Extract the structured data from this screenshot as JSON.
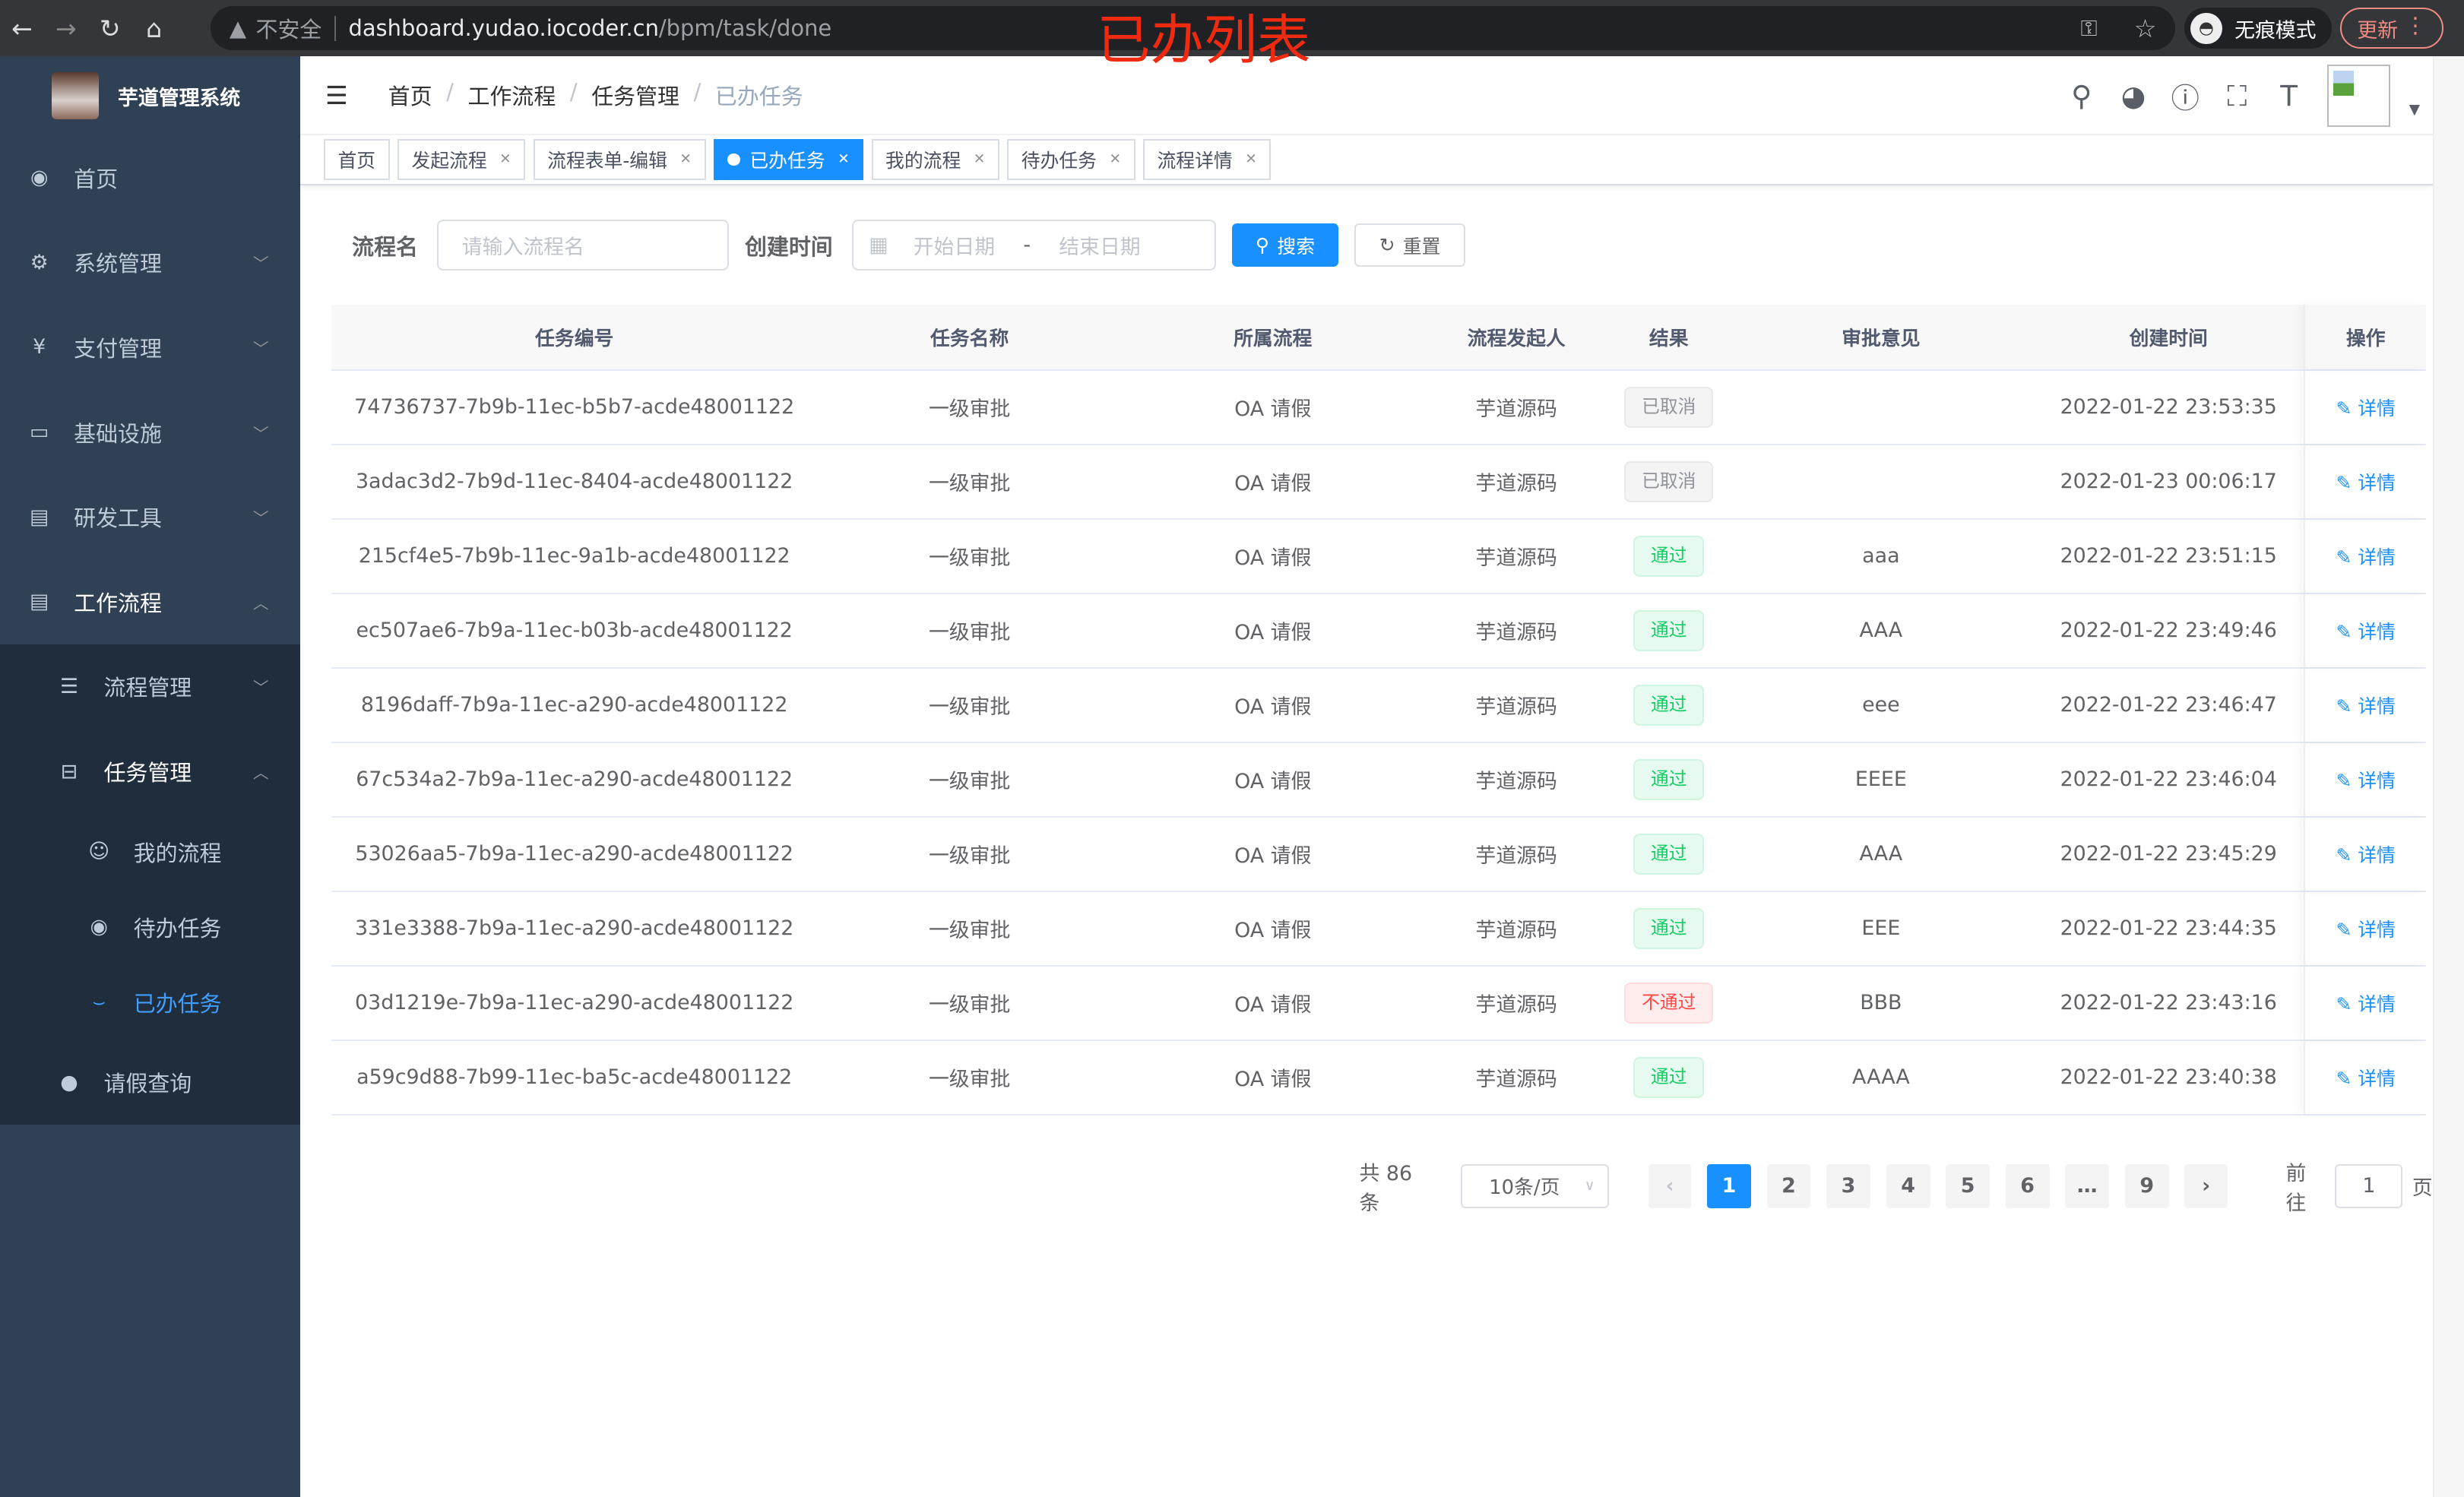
{
  "browser": {
    "security": "不安全",
    "url_host": "dashboard.yudao.iocoder.cn",
    "url_path": "/bpm/task/done",
    "incognito": "无痕模式",
    "update": "更新"
  },
  "annotation": "已办列表",
  "sidebar": {
    "title": "芋道管理系统",
    "items": [
      {
        "label": "首页",
        "icon": "dashboard-icon"
      },
      {
        "label": "系统管理",
        "icon": "gear-icon"
      },
      {
        "label": "支付管理",
        "icon": "yen-icon"
      },
      {
        "label": "基础设施",
        "icon": "monitor-icon"
      },
      {
        "label": "研发工具",
        "icon": "toolbox-icon"
      },
      {
        "label": "工作流程",
        "icon": "toolbox-icon"
      }
    ],
    "sub": {
      "flow_manage": "流程管理",
      "task_manage": "任务管理",
      "my_process": "我的流程",
      "todo": "待办任务",
      "done": "已办任务",
      "leave": "请假查询"
    }
  },
  "breadcrumb": [
    "首页",
    "工作流程",
    "任务管理",
    "已办任务"
  ],
  "tags": [
    "首页",
    "发起流程",
    "流程表单-编辑",
    "已办任务",
    "我的流程",
    "待办任务",
    "流程详情"
  ],
  "search": {
    "name_label": "流程名",
    "name_placeholder": "请输入流程名",
    "time_label": "创建时间",
    "start_placeholder": "开始日期",
    "range_sep": "-",
    "end_placeholder": "结束日期",
    "search_btn": "搜索",
    "reset_btn": "重置"
  },
  "table": {
    "headers": [
      "任务编号",
      "任务名称",
      "所属流程",
      "流程发起人",
      "结果",
      "审批意见",
      "创建时间",
      "操作"
    ],
    "rows": [
      [
        "74736737-7b9b-11ec-b5b7-acde48001122",
        "一级审批",
        "OA 请假",
        "芋道源码",
        "已取消",
        "",
        "2022-01-22 23:53:35",
        "详情"
      ],
      [
        "3adac3d2-7b9d-11ec-8404-acde48001122",
        "一级审批",
        "OA 请假",
        "芋道源码",
        "已取消",
        "",
        "2022-01-23 00:06:17",
        "详情"
      ],
      [
        "215cf4e5-7b9b-11ec-9a1b-acde48001122",
        "一级审批",
        "OA 请假",
        "芋道源码",
        "通过",
        "aaa",
        "2022-01-22 23:51:15",
        "详情"
      ],
      [
        "ec507ae6-7b9a-11ec-b03b-acde48001122",
        "一级审批",
        "OA 请假",
        "芋道源码",
        "通过",
        "AAA",
        "2022-01-22 23:49:46",
        "详情"
      ],
      [
        "8196daff-7b9a-11ec-a290-acde48001122",
        "一级审批",
        "OA 请假",
        "芋道源码",
        "通过",
        "eee",
        "2022-01-22 23:46:47",
        "详情"
      ],
      [
        "67c534a2-7b9a-11ec-a290-acde48001122",
        "一级审批",
        "OA 请假",
        "芋道源码",
        "通过",
        "EEEE",
        "2022-01-22 23:46:04",
        "详情"
      ],
      [
        "53026aa5-7b9a-11ec-a290-acde48001122",
        "一级审批",
        "OA 请假",
        "芋道源码",
        "通过",
        "AAA",
        "2022-01-22 23:45:29",
        "详情"
      ],
      [
        "331e3388-7b9a-11ec-a290-acde48001122",
        "一级审批",
        "OA 请假",
        "芋道源码",
        "通过",
        "EEE",
        "2022-01-22 23:44:35",
        "详情"
      ],
      [
        "03d1219e-7b9a-11ec-a290-acde48001122",
        "一级审批",
        "OA 请假",
        "芋道源码",
        "不通过",
        "BBB",
        "2022-01-22 23:43:16",
        "详情"
      ],
      [
        "a59c9d88-7b99-11ec-ba5c-acde48001122",
        "一级审批",
        "OA 请假",
        "芋道源码",
        "通过",
        "AAAA",
        "2022-01-22 23:40:38",
        "详情"
      ]
    ]
  },
  "result_colors": {
    "已取消": "#909399",
    "通过": "#13ce66",
    "不通过": "#ff4949"
  },
  "pagination": {
    "total": "共 86 条",
    "page_size": "10条/页",
    "pages": [
      "1",
      "2",
      "3",
      "4",
      "5",
      "6",
      "…",
      "9"
    ],
    "current": "1",
    "goto_label": "前往",
    "goto_value": "1",
    "page_suffix": "页"
  }
}
